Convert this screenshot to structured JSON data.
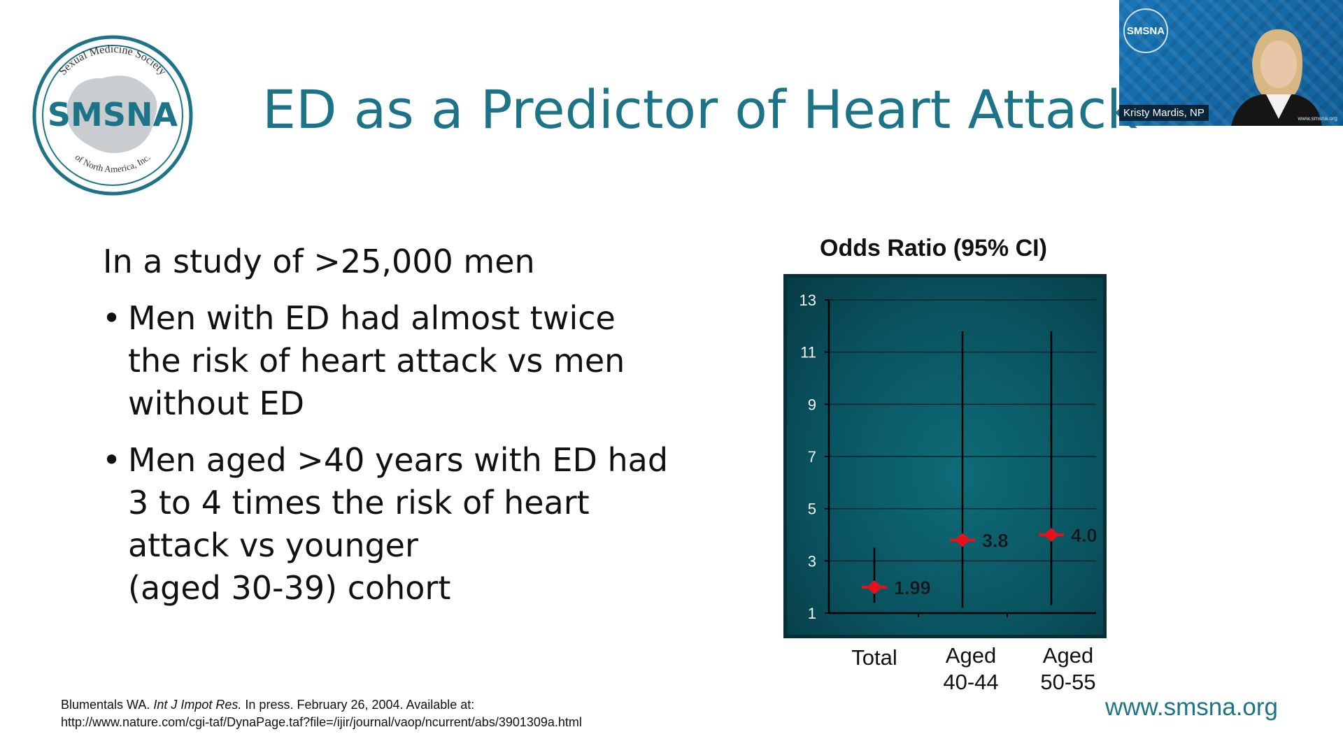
{
  "logo": {
    "name": "SMSNA",
    "ring_top": "Sexual Medicine Society",
    "ring_bottom": "of North America, Inc."
  },
  "slide": {
    "title": "ED as a Predictor of Heart Attack",
    "intro": "In a study of >25,000 men",
    "bullets": [
      {
        "lines": [
          "Men with ED had almost twice",
          "the risk of heart attack vs men",
          "without ED"
        ]
      },
      {
        "lines": [
          "Men aged >40 years with ED had",
          "3 to 4 times the risk of heart",
          "attack vs younger",
          "(aged 30-39) cohort"
        ]
      }
    ],
    "bullet_symbol": "•",
    "citation_line1_prefix": "Blumentals WA. ",
    "citation_journal": "Int J Impot Res.",
    "citation_line1_suffix": " In press. February 26, 2004. Available at:",
    "citation_line2": "http://www.nature.com/cgi-taf/DynaPage.taf?file=/ijir/journal/vaop/ncurrent/abs/3901309a.html",
    "footer_url": "www.smsna.org"
  },
  "video_tile": {
    "participant_name": "Kristy Mardis, NP",
    "badge_text": "SMSNA",
    "watermark": "www.smsna.org"
  },
  "colors": {
    "brand_teal": "#1d7489",
    "chart_bg": "#0e5560",
    "marker_red": "#e8101a"
  },
  "chart_data": {
    "type": "scatter",
    "title": "Odds Ratio (95% CI)",
    "categories": [
      "Total",
      "Aged\n40-44",
      "Aged\n50-55"
    ],
    "category_lines": [
      [
        "Total"
      ],
      [
        "Aged",
        "40-44"
      ],
      [
        "Aged",
        "50-55"
      ]
    ],
    "values": [
      1.99,
      3.8,
      4.0
    ],
    "value_labels": [
      "1.99",
      "3.8",
      "4.0"
    ],
    "ci_low": [
      1.4,
      1.2,
      1.3
    ],
    "ci_high": [
      3.5,
      11.8,
      11.8
    ],
    "yticks": [
      1,
      3,
      5,
      7,
      9,
      11,
      13
    ],
    "ylim": [
      1,
      13
    ],
    "grid": true
  }
}
